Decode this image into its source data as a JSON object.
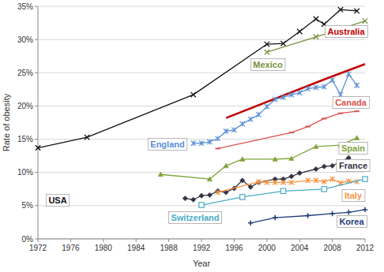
{
  "chart_data": {
    "type": "line",
    "x_label": "Year",
    "y_label": "Rate of obesity",
    "xlim": [
      1972,
      2012
    ],
    "xticks": [
      1972,
      1976,
      1980,
      1984,
      1988,
      1992,
      1996,
      2000,
      2004,
      2008,
      2012
    ],
    "ylim": [
      0,
      35
    ],
    "yticks": [
      {
        "value": 0,
        "label": "0%"
      },
      {
        "value": 5,
        "label": "5%"
      },
      {
        "value": 10,
        "label": "10%"
      },
      {
        "value": 15,
        "label": "15%"
      },
      {
        "value": 20,
        "label": "20%"
      },
      {
        "value": 25,
        "label": "25%"
      },
      {
        "value": 30,
        "label": "30%"
      },
      {
        "value": 35,
        "label": "35%"
      }
    ],
    "grid": true,
    "series": [
      {
        "name": "USA",
        "color": "#111111",
        "marker": "x",
        "line_style": "solid",
        "x": [
          1972,
          1978,
          1991,
          2000,
          2002,
          2004,
          2006,
          2007,
          2009,
          2011
        ],
        "values": [
          13.7,
          15.3,
          21.7,
          29.3,
          29.4,
          31.2,
          33.1,
          32.3,
          34.5,
          34.3
        ]
      },
      {
        "name": "Mexico",
        "color": "#77933c",
        "marker": "x",
        "line_style": "solid",
        "x": [
          2000,
          2006,
          2012
        ],
        "values": [
          28.1,
          30.4,
          32.8
        ]
      },
      {
        "name": "Australia",
        "color": "#c00000",
        "marker": "none",
        "line_style": "thick",
        "x": [
          1995,
          2007,
          2012
        ],
        "values": [
          18.2,
          24.0,
          26.3
        ]
      },
      {
        "name": "England",
        "color": "#5b8fd6",
        "marker": "star",
        "line_style": "solid",
        "x": [
          1991,
          1992,
          1993,
          1994,
          1995,
          1996,
          1997,
          1998,
          1999,
          2000,
          2001,
          2002,
          2003,
          2004,
          2005,
          2006,
          2007,
          2008,
          2009,
          2010,
          2011
        ],
        "values": [
          14.4,
          14.4,
          14.6,
          15.1,
          16.2,
          16.4,
          17.3,
          18.0,
          18.7,
          19.9,
          21.0,
          21.3,
          21.7,
          22.0,
          22.6,
          22.8,
          22.9,
          23.9,
          21.7,
          24.8,
          23.1
        ]
      },
      {
        "name": "Canada",
        "color": "#d9534f",
        "marker": "dash",
        "line_style": "solid",
        "x": [
          1994,
          2003,
          2005,
          2007,
          2009,
          2011
        ],
        "values": [
          13.6,
          16.0,
          16.9,
          18.1,
          18.9,
          19.2
        ]
      },
      {
        "name": "Spain",
        "color": "#7fa33a",
        "marker": "triangle",
        "line_style": "solid",
        "x": [
          1987,
          1993,
          1995,
          1997,
          2001,
          2003,
          2006,
          2009,
          2011
        ],
        "values": [
          9.7,
          9.0,
          11.0,
          12.0,
          12.0,
          12.1,
          13.9,
          14.1,
          15.2
        ]
      },
      {
        "name": "France",
        "color": "#333344",
        "marker": "diamond",
        "line_style": "solid",
        "x": [
          1990,
          1991,
          1992,
          1993,
          1994,
          1995,
          1996,
          1997,
          1998,
          1999,
          2001,
          2002,
          2003,
          2004,
          2006,
          2007,
          2008,
          2010
        ],
        "values": [
          6.1,
          5.9,
          6.5,
          6.6,
          7.2,
          7.0,
          7.6,
          8.8,
          7.8,
          8.5,
          9.0,
          9.0,
          9.4,
          9.9,
          10.5,
          10.9,
          11.0,
          12.2
        ]
      },
      {
        "name": "Italy",
        "color": "#f79646",
        "marker": "star",
        "line_style": "solid",
        "x": [
          1994,
          1999,
          2000,
          2001,
          2002,
          2003,
          2005,
          2006,
          2007,
          2008,
          2009,
          2010,
          2011
        ],
        "values": [
          7.0,
          8.6,
          8.5,
          8.5,
          8.5,
          8.5,
          8.8,
          8.8,
          8.6,
          9.0,
          8.4,
          8.7,
          8.6
        ]
      },
      {
        "name": "Switzerland",
        "color": "#4bacc6",
        "marker": "square",
        "line_style": "solid",
        "x": [
          1992,
          1997,
          2002,
          2007,
          2012
        ],
        "values": [
          5.1,
          6.3,
          7.2,
          7.5,
          9.0
        ]
      },
      {
        "name": "Korea",
        "color": "#1f3d7a",
        "marker": "plus",
        "line_style": "solid",
        "x": [
          1998,
          2001,
          2005,
          2008,
          2010,
          2012
        ],
        "values": [
          2.4,
          3.2,
          3.5,
          3.8,
          4.0,
          4.4
        ]
      }
    ]
  }
}
